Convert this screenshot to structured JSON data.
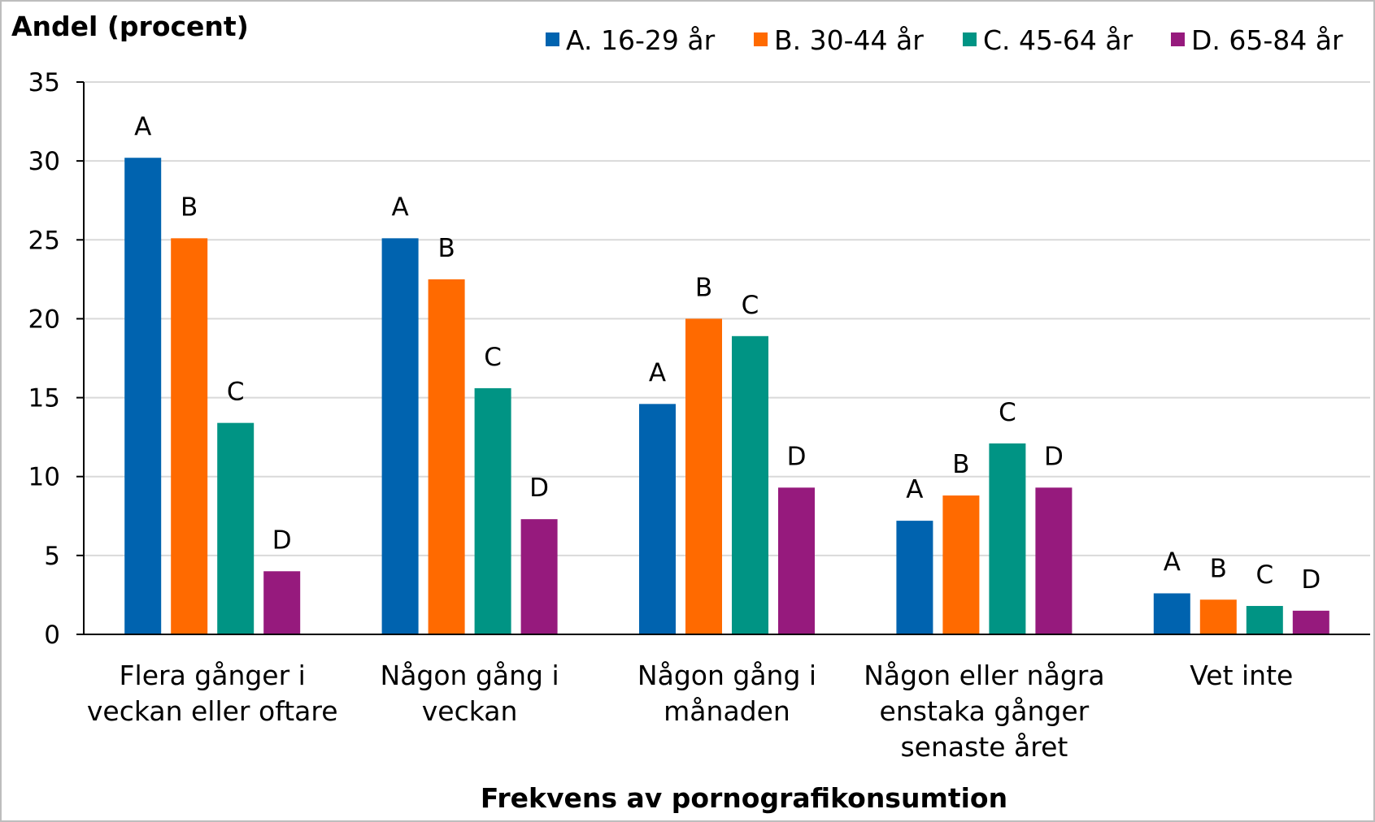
{
  "chart_data": {
    "type": "bar",
    "ylabel": "Andel (procent)",
    "xlabel": "Frekvens av pornografikonsumtion",
    "ylim": [
      0,
      35
    ],
    "yticks": [
      0,
      5,
      10,
      15,
      20,
      25,
      30,
      35
    ],
    "grid": true,
    "legend_position": "top-right",
    "categories": [
      [
        "Flera gånger i",
        "veckan eller oftare"
      ],
      [
        "Någon gång i",
        "veckan"
      ],
      [
        "Någon gång i",
        "månaden"
      ],
      [
        "Någon eller några",
        "enstaka gånger",
        "senaste året"
      ],
      [
        "Vet inte"
      ]
    ],
    "series": [
      {
        "name": "A. 16-29 år",
        "label": "A",
        "color": "#0063AF",
        "values": [
          30.2,
          25.1,
          14.6,
          7.2,
          2.6
        ]
      },
      {
        "name": "B. 30-44 år",
        "label": "B",
        "color": "#FF6A00",
        "values": [
          25.1,
          22.5,
          20.0,
          8.8,
          2.2
        ]
      },
      {
        "name": "C. 45-64 år",
        "label": "C",
        "color": "#009484",
        "values": [
          13.4,
          15.6,
          18.9,
          12.1,
          1.8
        ]
      },
      {
        "name": "D. 65-84 år",
        "label": "D",
        "color": "#961A7D",
        "values": [
          4.0,
          7.3,
          9.3,
          9.3,
          1.5
        ]
      }
    ]
  }
}
